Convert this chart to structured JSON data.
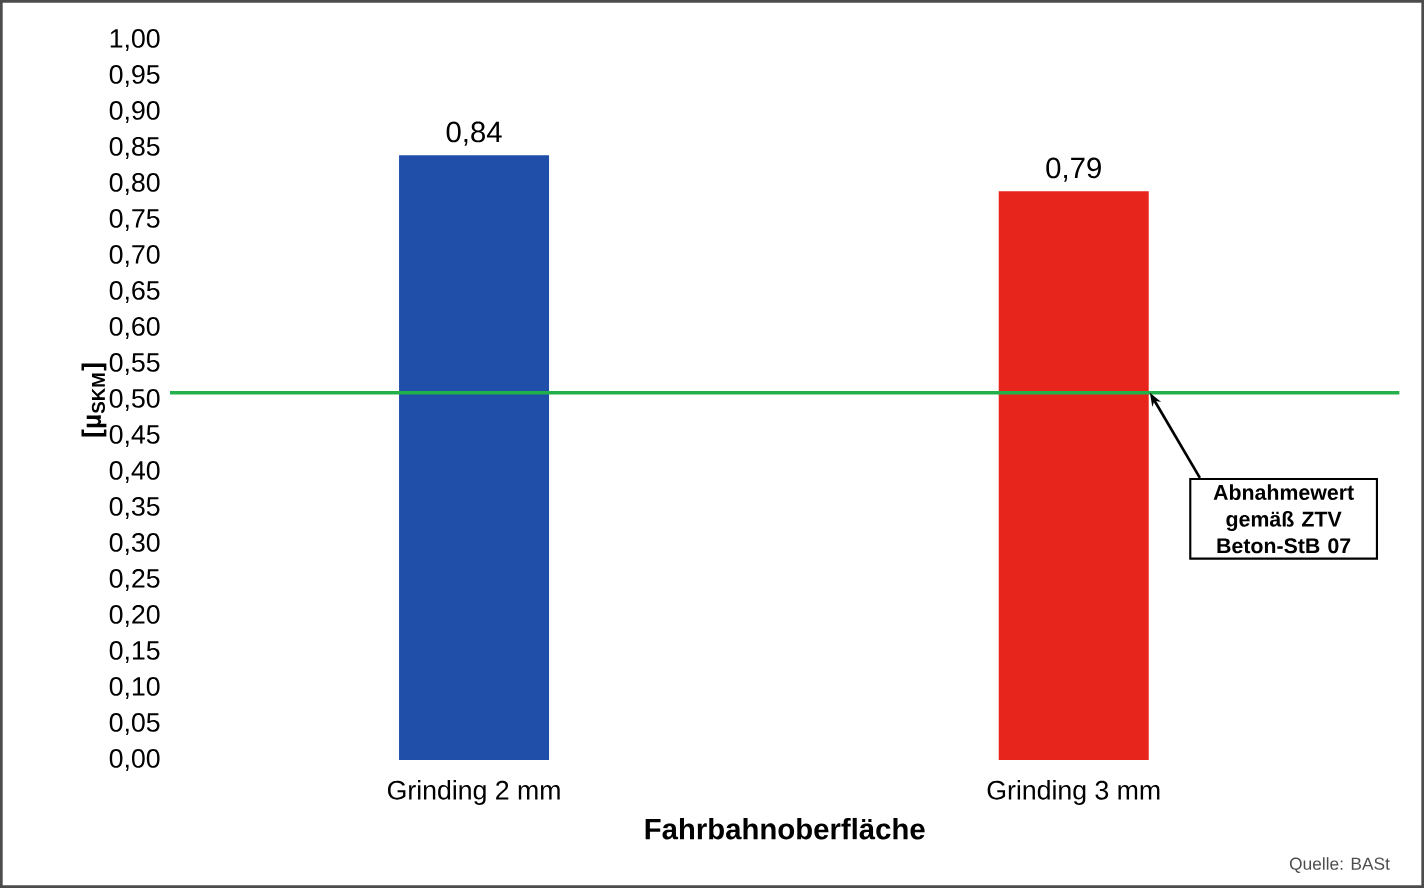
{
  "chart_data": {
    "type": "bar",
    "categories": [
      "Grinding 2 mm",
      "Grinding 3 mm"
    ],
    "values": [
      0.84,
      0.79
    ],
    "colors": [
      "#1f4fa8",
      "#e8251d"
    ],
    "value_labels": [
      "0,84",
      "0,79"
    ],
    "xlabel": "Fahrbahnoberfläche",
    "ylabel": "[µ$_{SKM}$]",
    "ylim": [
      0,
      1
    ],
    "yticks": [
      {
        "value": 0,
        "label": "0,00"
      },
      {
        "value": 0.05,
        "label": "0,05"
      },
      {
        "value": 0.1,
        "label": "0,10"
      },
      {
        "value": 0.15,
        "label": "0,15"
      },
      {
        "value": 0.2,
        "label": "0,20"
      },
      {
        "value": 0.25,
        "label": "0,25"
      },
      {
        "value": 0.3,
        "label": "0,30"
      },
      {
        "value": 0.35,
        "label": "0,35"
      },
      {
        "value": 0.4,
        "label": "0,40"
      },
      {
        "value": 0.45,
        "label": "0,45"
      },
      {
        "value": 0.5,
        "label": "0,50"
      },
      {
        "value": 0.55,
        "label": "0,55"
      },
      {
        "value": 0.6,
        "label": "0,60"
      },
      {
        "value": 0.65,
        "label": "0,65"
      },
      {
        "value": 0.7,
        "label": "0,70"
      },
      {
        "value": 0.75,
        "label": "0,75"
      },
      {
        "value": 0.8,
        "label": "0,80"
      },
      {
        "value": 0.85,
        "label": "0,85"
      },
      {
        "value": 0.9,
        "label": "0,90"
      },
      {
        "value": 0.95,
        "label": "0,95"
      },
      {
        "value": 1,
        "label": "1,00"
      }
    ],
    "ref_lines": [
      {
        "axis": "y",
        "value": 0.51,
        "label": "Abnahmewert gemäß ZTV Beton-StB 07",
        "color": "#22b04a",
        "line_style": "solid"
      }
    ],
    "annotations": [
      "Quelle: BASt"
    ]
  }
}
